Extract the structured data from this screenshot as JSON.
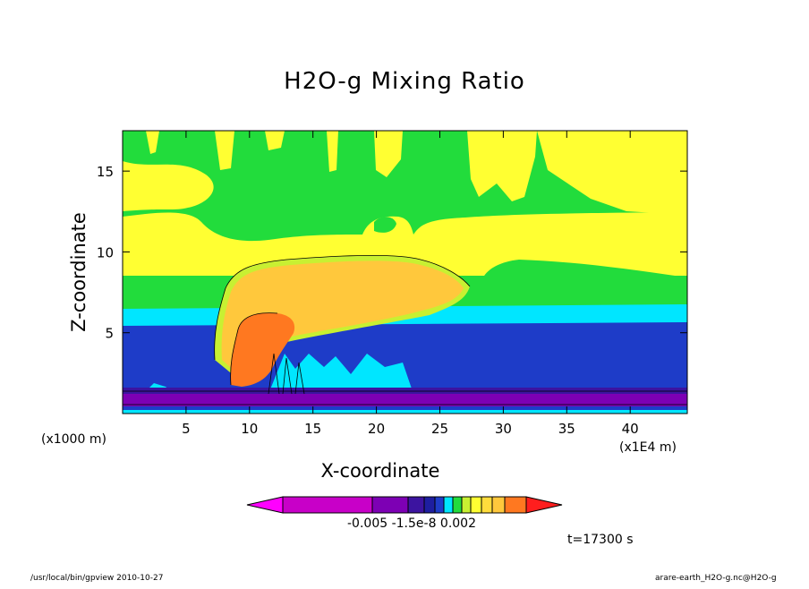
{
  "chart_data": {
    "type": "heatmap",
    "title": "H2O-g Mixing Ratio",
    "xlabel": "X-coordinate",
    "ylabel": "Z-coordinate",
    "x_unit": "(x1E4 m)",
    "y_unit": "(x1000 m)",
    "x_ticks": [
      5,
      10,
      15,
      20,
      25,
      30,
      35,
      40
    ],
    "y_ticks": [
      5,
      10,
      15
    ],
    "xlim": [
      0,
      44.5
    ],
    "ylim": [
      0,
      17.5
    ],
    "colorbar_tick_labels": "-0.005 -1.5e-8  0.002",
    "annotation_time": "t=17300 s",
    "colors": {
      "magenta": "#c800c8",
      "dark_violet": "#7d00b4",
      "indigo": "#3c14a0",
      "blue": "#1e3cc8",
      "cyan": "#00e6ff",
      "green": "#22dc3c",
      "yellow_green": "#c8f032",
      "yellow": "#ffff32",
      "gold": "#ffc83c",
      "orange": "#ff7820",
      "red": "#ff1e1e"
    }
  },
  "footer": {
    "left": "/usr/local/bin/gpview  2010-10-27",
    "right": "arare-earth_H2O-g.nc@H2O-g"
  }
}
